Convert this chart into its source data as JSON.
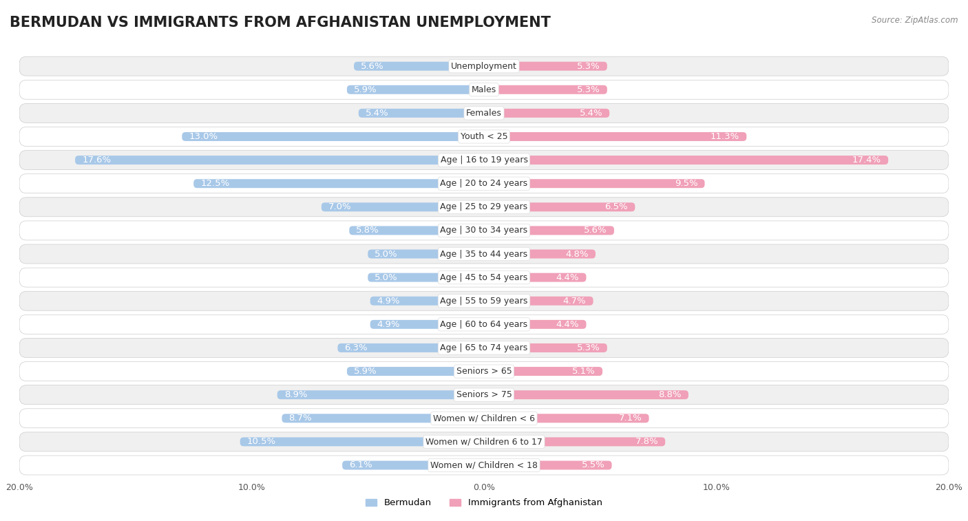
{
  "title": "BERMUDAN VS IMMIGRANTS FROM AFGHANISTAN UNEMPLOYMENT",
  "source": "Source: ZipAtlas.com",
  "categories": [
    "Unemployment",
    "Males",
    "Females",
    "Youth < 25",
    "Age | 16 to 19 years",
    "Age | 20 to 24 years",
    "Age | 25 to 29 years",
    "Age | 30 to 34 years",
    "Age | 35 to 44 years",
    "Age | 45 to 54 years",
    "Age | 55 to 59 years",
    "Age | 60 to 64 years",
    "Age | 65 to 74 years",
    "Seniors > 65",
    "Seniors > 75",
    "Women w/ Children < 6",
    "Women w/ Children 6 to 17",
    "Women w/ Children < 18"
  ],
  "bermudan": [
    5.6,
    5.9,
    5.4,
    13.0,
    17.6,
    12.5,
    7.0,
    5.8,
    5.0,
    5.0,
    4.9,
    4.9,
    6.3,
    5.9,
    8.9,
    8.7,
    10.5,
    6.1
  ],
  "afghanistan": [
    5.3,
    5.3,
    5.4,
    11.3,
    17.4,
    9.5,
    6.5,
    5.6,
    4.8,
    4.4,
    4.7,
    4.4,
    5.3,
    5.1,
    8.8,
    7.1,
    7.8,
    5.5
  ],
  "bermudan_color": "#a8c8e8",
  "afghanistan_color": "#f0a0b8",
  "xlim": 20.0,
  "bg_color": "#ffffff",
  "row_bg_odd": "#f0f0f0",
  "row_bg_even": "#ffffff",
  "title_fontsize": 15,
  "label_fontsize": 9.5,
  "tick_fontsize": 9,
  "cat_fontsize": 9
}
